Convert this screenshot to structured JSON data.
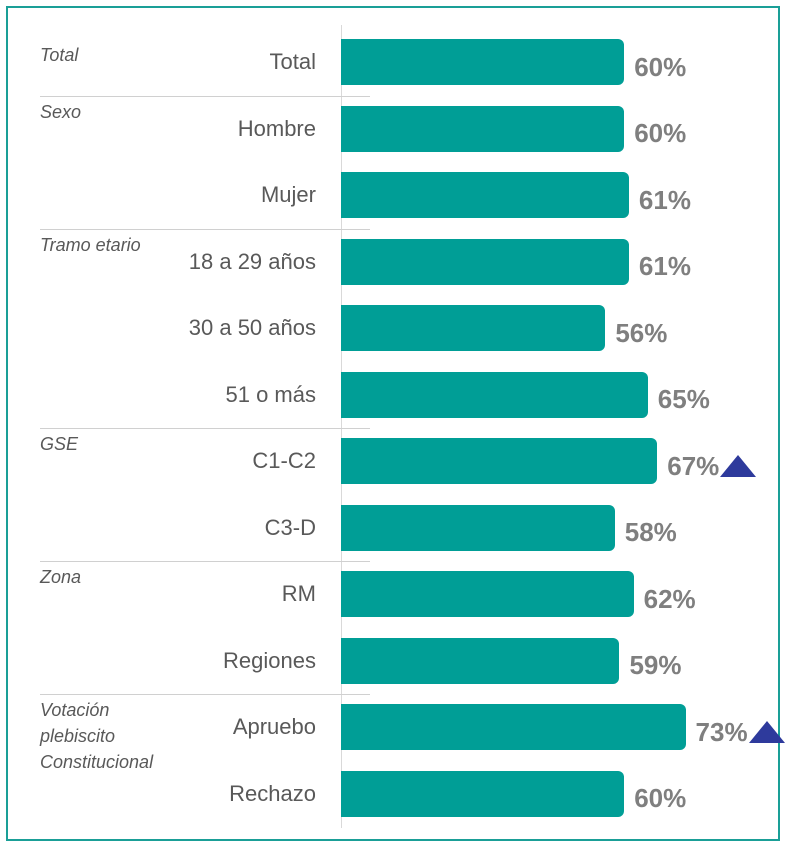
{
  "chart_data": {
    "type": "bar",
    "orientation": "horizontal",
    "categories": [
      "Total",
      "Hombre",
      "Mujer",
      "18 a 29 años",
      "30 a 50 años",
      "51 o más",
      "C1-C2",
      "C3-D",
      "RM",
      "Regiones",
      "Apruebo",
      "Rechazo"
    ],
    "group_labels": [
      "Total",
      "Sexo",
      null,
      "Tramo etario",
      null,
      null,
      "GSE",
      null,
      "Zona",
      null,
      "Votación plebiscito Constitucional",
      null
    ],
    "values": [
      60,
      60,
      61,
      61,
      56,
      65,
      67,
      58,
      62,
      59,
      73,
      60
    ],
    "value_labels": [
      "60%",
      "60%",
      "61%",
      "61%",
      "56%",
      "65%",
      "67%",
      "58%",
      "62%",
      "59%",
      "73%",
      "60%"
    ],
    "significant_up": [
      false,
      false,
      false,
      false,
      false,
      false,
      true,
      false,
      false,
      false,
      true,
      false
    ],
    "color": "#009e96",
    "marker_color": "#2e3a9c",
    "xlim": [
      0,
      100
    ]
  }
}
